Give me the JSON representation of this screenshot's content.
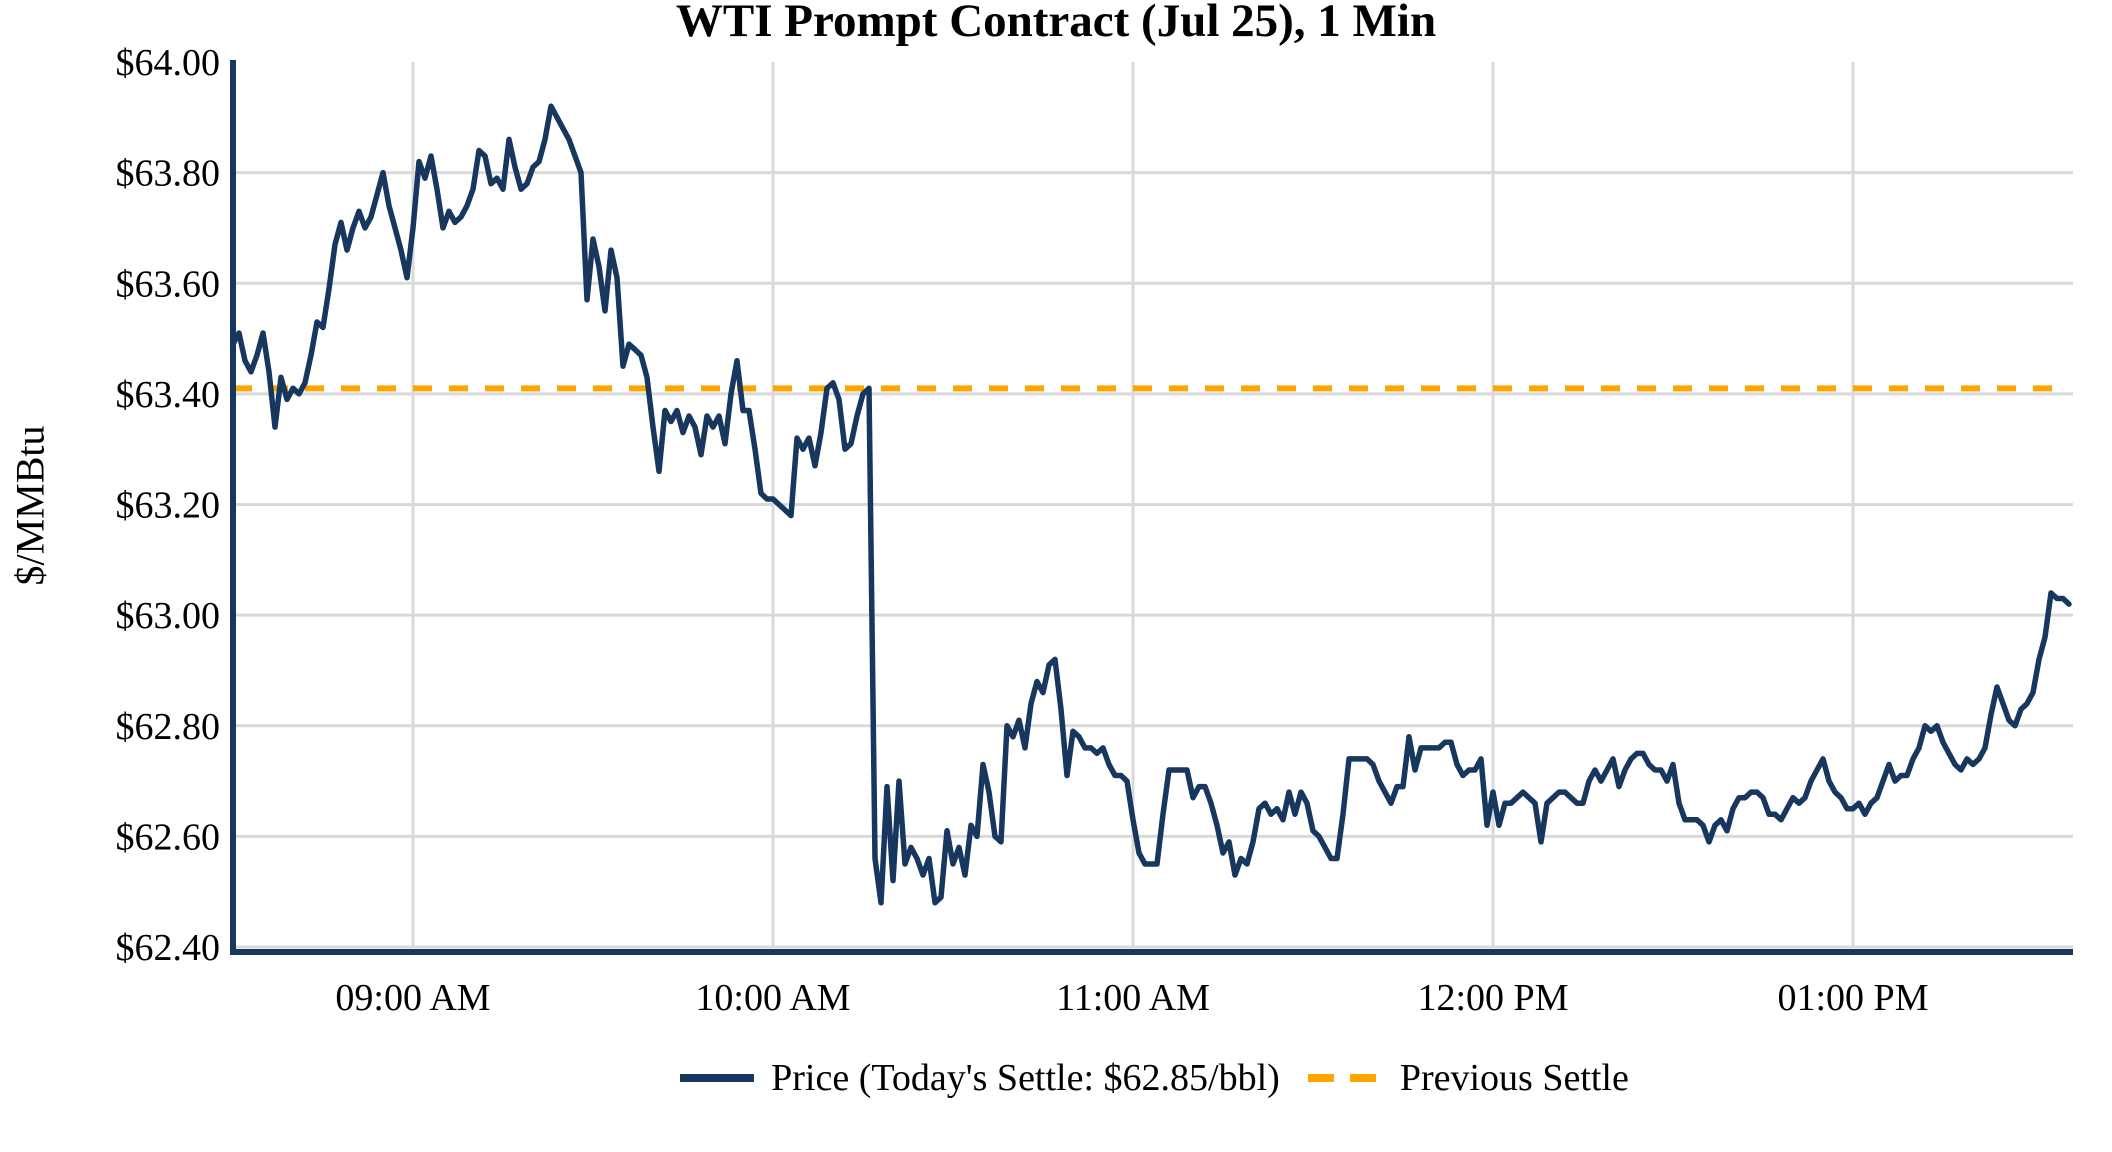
{
  "title": "WTI Prompt Contract (Jul 25), 1 Min",
  "y_axis_label": "$/MMBtu",
  "legend": {
    "price_label": "Price (Today's Settle: $62.85/bbl)",
    "settle_label": "Previous Settle"
  },
  "colors": {
    "price": "#17375E",
    "settle": "#FFA500",
    "grid": "#D9D9D9",
    "text": "#000000",
    "background": "#FFFFFF"
  },
  "chart_data": {
    "type": "line",
    "title": "WTI Prompt Contract (Jul 25), 1 Min",
    "xlabel": "",
    "ylabel": "$/MMBtu",
    "ylim": [
      62.4,
      64.0
    ],
    "grid": true,
    "legend_position": "bottom",
    "previous_settle": 63.41,
    "todays_settle": 62.85,
    "minutes_per_point": 1,
    "x_ticks": [
      {
        "minute": 30,
        "label": "09:00 AM"
      },
      {
        "minute": 90,
        "label": "10:00 AM"
      },
      {
        "minute": 150,
        "label": "11:00 AM"
      },
      {
        "minute": 210,
        "label": "12:00 PM"
      },
      {
        "minute": 270,
        "label": "01:00 PM"
      }
    ],
    "y_ticks": [
      {
        "value": 64.0,
        "label": "$64.00"
      },
      {
        "value": 63.8,
        "label": "$63.80"
      },
      {
        "value": 63.6,
        "label": "$63.60"
      },
      {
        "value": 63.4,
        "label": "$63.40"
      },
      {
        "value": 63.2,
        "label": "$63.20"
      },
      {
        "value": 63.0,
        "label": "$63.00"
      },
      {
        "value": 62.8,
        "label": "$62.80"
      },
      {
        "value": 62.6,
        "label": "$62.60"
      },
      {
        "value": 62.4,
        "label": "$62.40"
      }
    ],
    "series": [
      {
        "name": "Price",
        "values": [
          63.49,
          63.51,
          63.46,
          63.44,
          63.47,
          63.51,
          63.44,
          63.34,
          63.43,
          63.39,
          63.41,
          63.4,
          63.42,
          63.47,
          63.53,
          63.52,
          63.59,
          63.67,
          63.71,
          63.66,
          63.7,
          63.73,
          63.7,
          63.72,
          63.76,
          63.8,
          63.74,
          63.7,
          63.66,
          63.61,
          63.7,
          63.82,
          63.79,
          63.83,
          63.77,
          63.7,
          63.73,
          63.71,
          63.72,
          63.74,
          63.77,
          63.84,
          63.83,
          63.78,
          63.79,
          63.77,
          63.86,
          63.81,
          63.77,
          63.78,
          63.81,
          63.82,
          63.86,
          63.92,
          63.9,
          63.88,
          63.86,
          63.83,
          63.8,
          63.57,
          63.68,
          63.63,
          63.55,
          63.66,
          63.61,
          63.45,
          63.49,
          63.48,
          63.47,
          63.43,
          63.34,
          63.26,
          63.37,
          63.35,
          63.37,
          63.33,
          63.36,
          63.34,
          63.29,
          63.36,
          63.34,
          63.36,
          63.31,
          63.4,
          63.46,
          63.37,
          63.37,
          63.3,
          63.22,
          63.21,
          63.21,
          63.2,
          63.19,
          63.18,
          63.32,
          63.3,
          63.32,
          63.27,
          63.33,
          63.41,
          63.42,
          63.39,
          63.3,
          63.31,
          63.36,
          63.4,
          63.41,
          62.56,
          62.48,
          62.69,
          62.52,
          62.7,
          62.55,
          62.58,
          62.56,
          62.53,
          62.56,
          62.48,
          62.49,
          62.61,
          62.55,
          62.58,
          62.53,
          62.62,
          62.6,
          62.73,
          62.68,
          62.6,
          62.59,
          62.8,
          62.78,
          62.81,
          62.76,
          62.84,
          62.88,
          62.86,
          62.91,
          62.92,
          62.83,
          62.71,
          62.79,
          62.78,
          62.76,
          62.76,
          62.75,
          62.76,
          62.73,
          62.71,
          62.71,
          62.7,
          62.63,
          62.57,
          62.55,
          62.55,
          62.55,
          62.64,
          62.72,
          62.72,
          62.72,
          62.72,
          62.67,
          62.69,
          62.69,
          62.66,
          62.62,
          62.57,
          62.59,
          62.53,
          62.56,
          62.55,
          62.59,
          62.65,
          62.66,
          62.64,
          62.65,
          62.63,
          62.68,
          62.64,
          62.68,
          62.66,
          62.61,
          62.6,
          62.58,
          62.56,
          62.56,
          62.64,
          62.74,
          62.74,
          62.74,
          62.74,
          62.73,
          62.7,
          62.68,
          62.66,
          62.69,
          62.69,
          62.78,
          62.72,
          62.76,
          62.76,
          62.76,
          62.76,
          62.77,
          62.77,
          62.73,
          62.71,
          62.72,
          62.72,
          62.74,
          62.62,
          62.68,
          62.62,
          62.66,
          62.66,
          62.67,
          62.68,
          62.67,
          62.66,
          62.59,
          62.66,
          62.67,
          62.68,
          62.68,
          62.67,
          62.66,
          62.66,
          62.7,
          62.72,
          62.7,
          62.72,
          62.74,
          62.69,
          62.72,
          62.74,
          62.75,
          62.75,
          62.73,
          62.72,
          62.72,
          62.7,
          62.73,
          62.66,
          62.63,
          62.63,
          62.63,
          62.62,
          62.59,
          62.62,
          62.63,
          62.61,
          62.65,
          62.67,
          62.67,
          62.68,
          62.68,
          62.67,
          62.64,
          62.64,
          62.63,
          62.65,
          62.67,
          62.66,
          62.67,
          62.7,
          62.72,
          62.74,
          62.7,
          62.68,
          62.67,
          62.65,
          62.65,
          62.66,
          62.64,
          62.66,
          62.67,
          62.7,
          62.73,
          62.7,
          62.71,
          62.71,
          62.74,
          62.76,
          62.8,
          62.79,
          62.8,
          62.77,
          62.75,
          62.73,
          62.72,
          62.74,
          62.73,
          62.74,
          62.76,
          62.82,
          62.87,
          62.84,
          62.81,
          62.8,
          62.83,
          62.84,
          62.86,
          62.92,
          62.96,
          63.04,
          63.03,
          63.03,
          63.02
        ]
      }
    ]
  }
}
